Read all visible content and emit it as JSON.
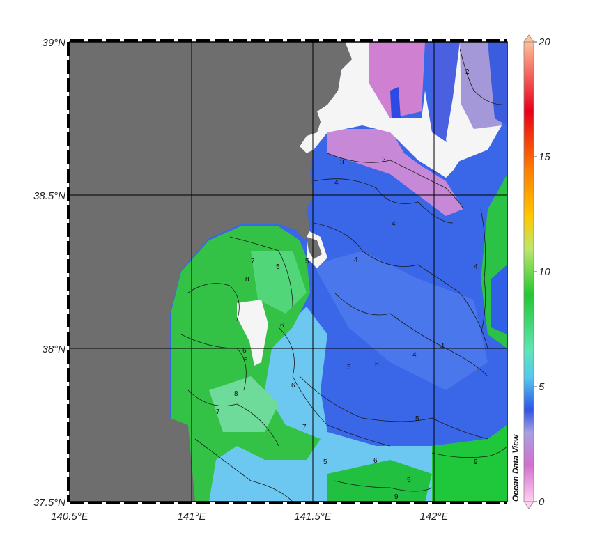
{
  "map": {
    "lon_labels": [
      "140.5°E",
      "141°E",
      "141.5°E",
      "142°E"
    ],
    "lat_labels": [
      "39°N",
      "38.5°N",
      "38°N",
      "37.5°N"
    ],
    "lon_range": [
      140.5,
      142.3
    ],
    "lat_range": [
      37.5,
      39.0
    ],
    "land_color": "#6e6e6e",
    "missing_color": "#f5f5f5",
    "grid": true
  },
  "colorbar": {
    "range": [
      0,
      20
    ],
    "tick_labels": [
      "20",
      "15",
      "10",
      "5",
      "0"
    ],
    "colors": [
      "#ffc09a",
      "#e8001a",
      "#ff7f00",
      "#ffc800",
      "#bfe66a",
      "#22c832",
      "#5ee6b4",
      "#55c8f0",
      "#2f54e8",
      "#a8a0e0",
      "#d070d0",
      "#ffd0f0"
    ]
  },
  "contour_labels": [
    "2",
    "2",
    "3",
    "4",
    "4",
    "4",
    "5",
    "5",
    "6",
    "6",
    "7",
    "7",
    "8",
    "5",
    "6",
    "5",
    "4",
    "4",
    "4",
    "5",
    "9",
    "5",
    "7",
    "5",
    "6",
    "5",
    "9",
    "8"
  ],
  "credit": "Ocean Data View"
}
